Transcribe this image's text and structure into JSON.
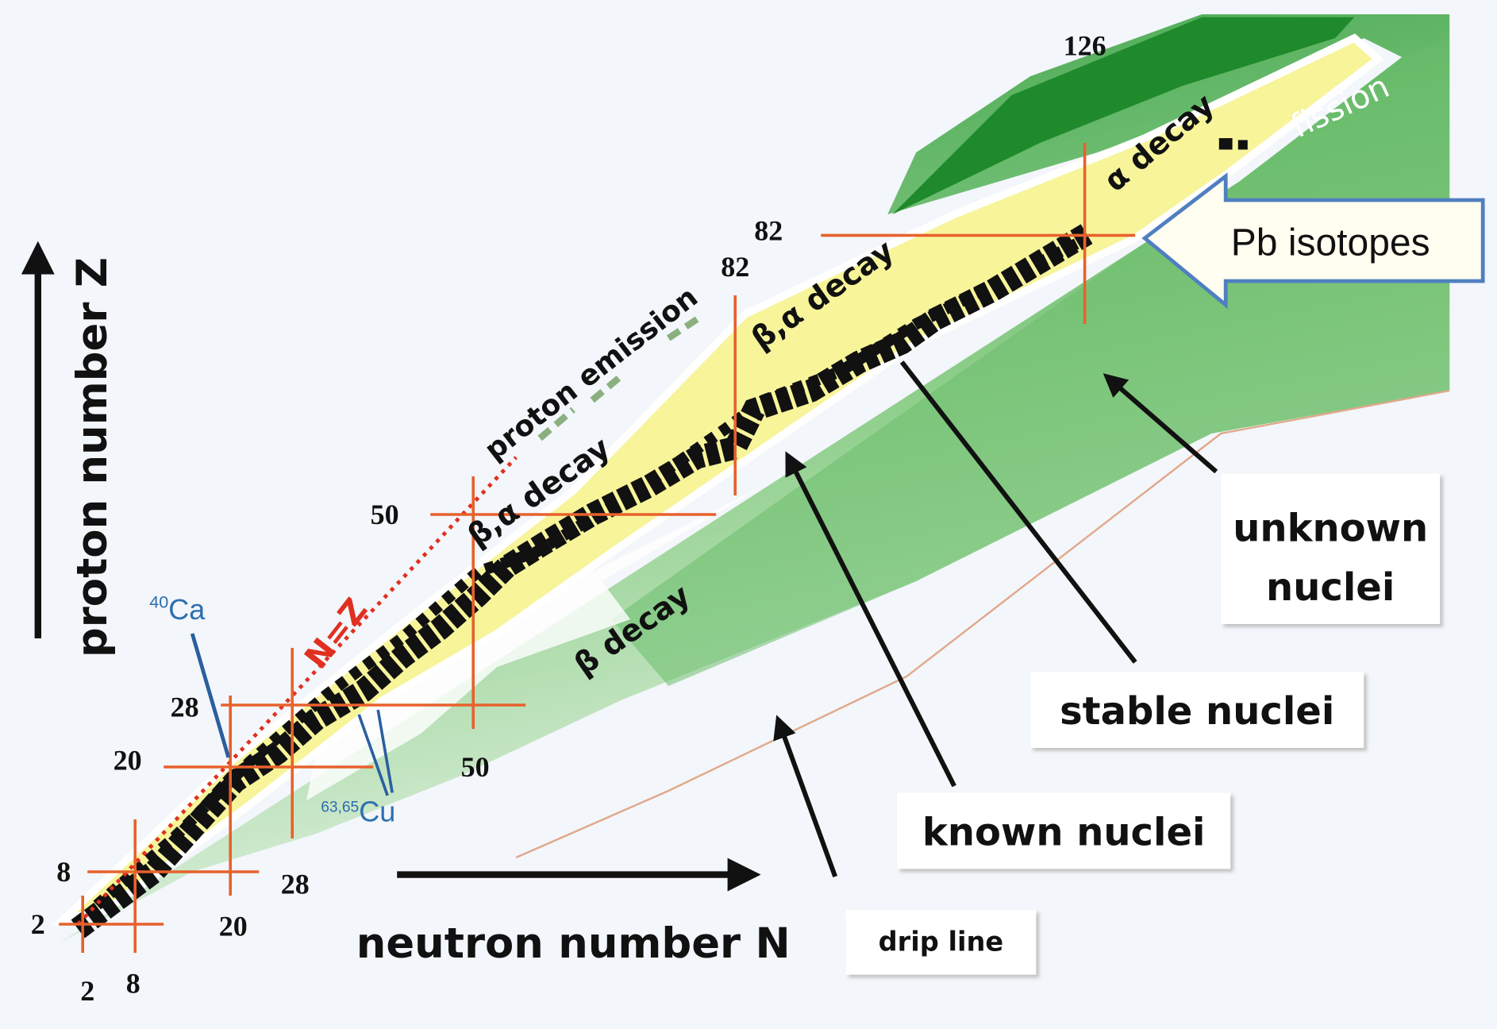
{
  "axes": {
    "y_label": "proton number Z",
    "x_label": "neutron number N"
  },
  "magic_numbers": {
    "proton": [
      2,
      8,
      20,
      28,
      50,
      82
    ],
    "neutron": [
      2,
      8,
      20,
      28,
      50,
      82,
      126
    ]
  },
  "regions": {
    "proton_emission": "proton emission",
    "beta_alpha_decay_lower": "β,α decay",
    "beta_alpha_decay_upper": "β,α decay",
    "alpha_decay": "α decay",
    "fission": "fission",
    "beta_decay": "β decay",
    "n_equals_z": "N=Z"
  },
  "isotopes": {
    "calcium": {
      "mass": "40",
      "symbol": "Ca"
    },
    "copper": {
      "mass": "63,65",
      "symbol": "Cu"
    }
  },
  "callouts": {
    "pb_isotopes": "Pb isotopes",
    "unknown_nuclei": [
      "unknown",
      "nuclei"
    ],
    "stable_nuclei": "stable nuclei",
    "known_nuclei": "known nuclei",
    "drip_line": "drip line"
  }
}
